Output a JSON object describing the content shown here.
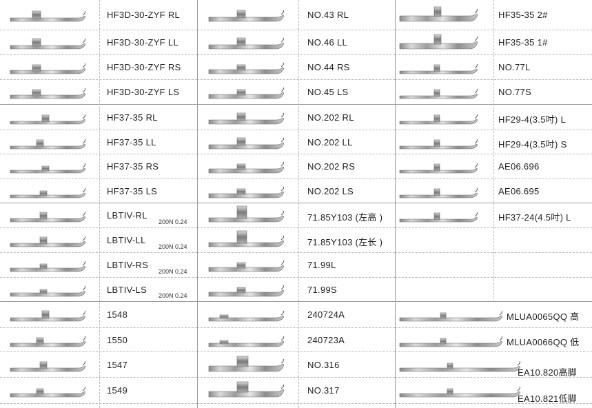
{
  "columns": [
    {
      "rows": [
        {
          "label": "HF3D-30-ZYF RL"
        },
        {
          "label": "HF3D-30-ZYF LL"
        },
        {
          "label": "HF3D-30-ZYF RS"
        },
        {
          "label": "HF3D-30-ZYF LS"
        },
        {
          "label": "HF37-35 RL"
        },
        {
          "label": "HF37-35 LL"
        },
        {
          "label": "HF37-35 RS"
        },
        {
          "label": "HF37-35 LS"
        },
        {
          "label": "LBTIV-RL",
          "sub": "200N  0.24"
        },
        {
          "label": "LBTIV-LL",
          "sub": "200N  0.24"
        },
        {
          "label": "LBTIV-RS",
          "sub": "200N  0.24"
        },
        {
          "label": "LBTIV-LS",
          "sub": "200N  0.24"
        },
        {
          "label": "1548"
        },
        {
          "label": "1550"
        },
        {
          "label": "1547"
        },
        {
          "label": "1549"
        }
      ]
    },
    {
      "rows": [
        {
          "label": "NO.43  RL"
        },
        {
          "label": "NO.46  LL"
        },
        {
          "label": "NO.44  RS"
        },
        {
          "label": "NO.45  LS"
        },
        {
          "label": "NO.202  RL"
        },
        {
          "label": "NO.202  LL"
        },
        {
          "label": "NO.202  RS"
        },
        {
          "label": "NO.202  LS"
        },
        {
          "label": "71.85Y103 (左高 )"
        },
        {
          "label": "71.85Y103 (左长 )"
        },
        {
          "label": "71.99L"
        },
        {
          "label": "71.99S"
        },
        {
          "label": "240724A"
        },
        {
          "label": "240723A"
        },
        {
          "label": "NO.316"
        },
        {
          "label": "NO.317"
        }
      ]
    },
    {
      "rows": [
        {
          "label": "HF35-35  2#"
        },
        {
          "label": "HF35-35  1#"
        },
        {
          "label": "NO.77L"
        },
        {
          "label": "NO.77S"
        },
        {
          "label": "HF29-4(3.5吋) L"
        },
        {
          "label": "HF29-4(3.5吋) S"
        },
        {
          "label": "AE06.696"
        },
        {
          "label": "AE06.695"
        },
        {
          "label": "HF37-24(4.5吋) L"
        },
        {
          "label": ""
        },
        {
          "label": ""
        },
        {
          "label": ""
        },
        {
          "label": "MLUA0065QQ 高"
        },
        {
          "label": "MLUA0066QQ 低"
        },
        {
          "label": "EA10.820高脚"
        },
        {
          "label": "EA10.821低脚"
        }
      ]
    }
  ],
  "colors": {
    "line_solid": "#9a9a9a",
    "line_dash": "#b8b8b8",
    "metal_light": "#e8e8e8",
    "metal_dark": "#6f6f6f"
  }
}
